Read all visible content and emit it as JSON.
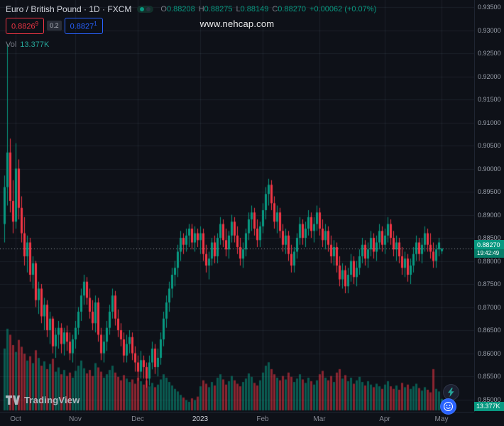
{
  "header": {
    "symbol_full": "Euro / British Pound · 1D · FXCM",
    "ohlc": {
      "o_label": "O",
      "o": "0.88208",
      "h_label": "H",
      "h": "0.88275",
      "l_label": "L",
      "l": "0.88149",
      "c_label": "C",
      "c": "0.88270",
      "change": "+0.00062",
      "change_pct": "(+0.07%)"
    },
    "sell_price": "0.8826",
    "sell_sup": "9",
    "spread": "0.2",
    "buy_price": "0.8827",
    "buy_sup": "1",
    "vol_label": "Vol",
    "vol_value": "13.377K"
  },
  "watermark": "www.nehcap.com",
  "price_axis": {
    "current": {
      "price": "0.88270",
      "countdown": "19:42:49"
    },
    "volume_badge": "13.377K"
  },
  "logo": {
    "text": "TradingView"
  },
  "colors": {
    "background": "#0e1118",
    "grid": "rgba(151,166,195,0.10)",
    "up": "#089981",
    "down": "#f23645",
    "vol_up": "rgba(8,153,129,0.55)",
    "vol_down": "rgba(242,54,69,0.55)",
    "current_line": "#9598a1",
    "axis_text": "#9aa0ab",
    "badge": "#089981",
    "sell": "#f23645",
    "buy": "#2962ff"
  },
  "chart_data": {
    "type": "candlestick",
    "title": "Euro / British Pound 1D FXCM",
    "ylabel": "Price (EURGBP)",
    "y_range": [
      0.85,
      0.935
    ],
    "grid": true,
    "price_ticks": [
      0.935,
      0.93,
      0.925,
      0.92,
      0.915,
      0.91,
      0.905,
      0.9,
      0.895,
      0.89,
      0.885,
      0.88,
      0.875,
      0.87,
      0.865,
      0.86,
      0.855,
      0.85
    ],
    "x_ticks": [
      {
        "label": "Oct",
        "i": 4
      },
      {
        "label": "Nov",
        "i": 25
      },
      {
        "label": "Dec",
        "i": 47
      },
      {
        "label": "2023",
        "i": 69,
        "year": true
      },
      {
        "label": "Feb",
        "i": 91
      },
      {
        "label": "Mar",
        "i": 111
      },
      {
        "label": "Apr",
        "i": 134
      },
      {
        "label": "May",
        "i": 154
      }
    ],
    "current_price": 0.8827,
    "volume_max_k": 95,
    "ohlc": [
      [
        0.888,
        0.8985,
        0.884,
        0.896
      ],
      [
        0.896,
        0.927,
        0.892,
        0.9035
      ],
      [
        0.9035,
        0.9065,
        0.8905,
        0.893
      ],
      [
        0.893,
        0.8975,
        0.886,
        0.8885
      ],
      [
        0.8885,
        0.9055,
        0.887,
        0.9
      ],
      [
        0.9,
        0.902,
        0.889,
        0.8915
      ],
      [
        0.8915,
        0.894,
        0.884,
        0.886
      ],
      [
        0.886,
        0.8895,
        0.879,
        0.881
      ],
      [
        0.881,
        0.8855,
        0.8775,
        0.884
      ],
      [
        0.884,
        0.885,
        0.8755,
        0.877
      ],
      [
        0.877,
        0.881,
        0.874,
        0.8795
      ],
      [
        0.8795,
        0.88,
        0.87,
        0.8715
      ],
      [
        0.8715,
        0.8755,
        0.8685,
        0.874
      ],
      [
        0.874,
        0.875,
        0.8665,
        0.868
      ],
      [
        0.868,
        0.872,
        0.865,
        0.8705
      ],
      [
        0.8705,
        0.8715,
        0.8635,
        0.865
      ],
      [
        0.865,
        0.869,
        0.862,
        0.8675
      ],
      [
        0.8675,
        0.868,
        0.86,
        0.8615
      ],
      [
        0.8615,
        0.8655,
        0.859,
        0.864
      ],
      [
        0.864,
        0.867,
        0.861,
        0.8655
      ],
      [
        0.8655,
        0.8665,
        0.86,
        0.862
      ],
      [
        0.862,
        0.8655,
        0.8595,
        0.8645
      ],
      [
        0.8645,
        0.866,
        0.8605,
        0.8625
      ],
      [
        0.8625,
        0.8645,
        0.8585,
        0.86
      ],
      [
        0.86,
        0.864,
        0.858,
        0.863
      ],
      [
        0.863,
        0.867,
        0.861,
        0.8655
      ],
      [
        0.8655,
        0.87,
        0.864,
        0.869
      ],
      [
        0.869,
        0.874,
        0.867,
        0.8725
      ],
      [
        0.8725,
        0.877,
        0.8705,
        0.8755
      ],
      [
        0.8755,
        0.8765,
        0.8705,
        0.872
      ],
      [
        0.872,
        0.874,
        0.8675,
        0.869
      ],
      [
        0.869,
        0.8715,
        0.865,
        0.8665
      ],
      [
        0.8665,
        0.8725,
        0.8645,
        0.871
      ],
      [
        0.871,
        0.872,
        0.8625,
        0.864
      ],
      [
        0.864,
        0.8655,
        0.8585,
        0.86
      ],
      [
        0.86,
        0.864,
        0.858,
        0.8625
      ],
      [
        0.8625,
        0.867,
        0.8605,
        0.8655
      ],
      [
        0.8655,
        0.8705,
        0.864,
        0.869
      ],
      [
        0.869,
        0.874,
        0.8675,
        0.8725
      ],
      [
        0.8725,
        0.8735,
        0.866,
        0.8675
      ],
      [
        0.8675,
        0.8695,
        0.8635,
        0.865
      ],
      [
        0.865,
        0.8665,
        0.8615,
        0.863
      ],
      [
        0.863,
        0.8645,
        0.858,
        0.8595
      ],
      [
        0.8595,
        0.864,
        0.858,
        0.862
      ],
      [
        0.862,
        0.865,
        0.86,
        0.8635
      ],
      [
        0.8635,
        0.8645,
        0.8585,
        0.86
      ],
      [
        0.86,
        0.8615,
        0.856,
        0.858
      ],
      [
        0.858,
        0.8595,
        0.854,
        0.856
      ],
      [
        0.856,
        0.8605,
        0.8545,
        0.8585
      ],
      [
        0.8585,
        0.8595,
        0.8545,
        0.857
      ],
      [
        0.857,
        0.858,
        0.8525,
        0.8545
      ],
      [
        0.8545,
        0.8595,
        0.853,
        0.858
      ],
      [
        0.858,
        0.8625,
        0.8565,
        0.861
      ],
      [
        0.861,
        0.862,
        0.8555,
        0.857
      ],
      [
        0.857,
        0.861,
        0.855,
        0.859
      ],
      [
        0.859,
        0.8645,
        0.8575,
        0.863
      ],
      [
        0.863,
        0.869,
        0.8615,
        0.8675
      ],
      [
        0.8675,
        0.8725,
        0.8655,
        0.871
      ],
      [
        0.871,
        0.8755,
        0.869,
        0.874
      ],
      [
        0.874,
        0.8785,
        0.872,
        0.877
      ],
      [
        0.877,
        0.88,
        0.8745,
        0.8785
      ],
      [
        0.8785,
        0.8835,
        0.8765,
        0.882
      ],
      [
        0.882,
        0.8865,
        0.88,
        0.885
      ],
      [
        0.885,
        0.886,
        0.8815,
        0.8835
      ],
      [
        0.8835,
        0.887,
        0.882,
        0.8855
      ],
      [
        0.8855,
        0.888,
        0.883,
        0.887
      ],
      [
        0.887,
        0.888,
        0.8825,
        0.884
      ],
      [
        0.884,
        0.8875,
        0.882,
        0.886
      ],
      [
        0.886,
        0.887,
        0.883,
        0.8845
      ],
      [
        0.8845,
        0.8875,
        0.8815,
        0.886
      ],
      [
        0.886,
        0.887,
        0.88,
        0.8815
      ],
      [
        0.8815,
        0.8835,
        0.8775,
        0.879
      ],
      [
        0.879,
        0.882,
        0.876,
        0.8805
      ],
      [
        0.8805,
        0.885,
        0.879,
        0.884
      ],
      [
        0.884,
        0.8855,
        0.8795,
        0.881
      ],
      [
        0.881,
        0.886,
        0.8795,
        0.885
      ],
      [
        0.885,
        0.8895,
        0.8835,
        0.888
      ],
      [
        0.888,
        0.889,
        0.883,
        0.8845
      ],
      [
        0.8845,
        0.887,
        0.881,
        0.8825
      ],
      [
        0.8825,
        0.8865,
        0.8805,
        0.8855
      ],
      [
        0.8855,
        0.89,
        0.884,
        0.8885
      ],
      [
        0.8885,
        0.8895,
        0.884,
        0.8855
      ],
      [
        0.8855,
        0.8875,
        0.8815,
        0.883
      ],
      [
        0.883,
        0.885,
        0.879,
        0.8805
      ],
      [
        0.8805,
        0.884,
        0.8785,
        0.8825
      ],
      [
        0.8825,
        0.887,
        0.881,
        0.886
      ],
      [
        0.886,
        0.8905,
        0.8845,
        0.889
      ],
      [
        0.889,
        0.892,
        0.8865,
        0.8905
      ],
      [
        0.8905,
        0.8915,
        0.8855,
        0.887
      ],
      [
        0.887,
        0.889,
        0.883,
        0.8845
      ],
      [
        0.8845,
        0.8885,
        0.883,
        0.8875
      ],
      [
        0.8875,
        0.8925,
        0.886,
        0.891
      ],
      [
        0.891,
        0.896,
        0.889,
        0.8945
      ],
      [
        0.8945,
        0.8978,
        0.892,
        0.8965
      ],
      [
        0.8965,
        0.8975,
        0.891,
        0.8925
      ],
      [
        0.8925,
        0.894,
        0.887,
        0.8885
      ],
      [
        0.8885,
        0.892,
        0.886,
        0.8905
      ],
      [
        0.8905,
        0.8915,
        0.885,
        0.8865
      ],
      [
        0.8865,
        0.888,
        0.882,
        0.8835
      ],
      [
        0.8835,
        0.887,
        0.8815,
        0.8855
      ],
      [
        0.8855,
        0.8865,
        0.88,
        0.8815
      ],
      [
        0.8815,
        0.8835,
        0.8775,
        0.879
      ],
      [
        0.879,
        0.883,
        0.8775,
        0.882
      ],
      [
        0.882,
        0.886,
        0.8805,
        0.885
      ],
      [
        0.885,
        0.8895,
        0.8835,
        0.888
      ],
      [
        0.888,
        0.889,
        0.8835,
        0.885
      ],
      [
        0.885,
        0.8885,
        0.883,
        0.887
      ],
      [
        0.887,
        0.891,
        0.8855,
        0.8895
      ],
      [
        0.8895,
        0.8905,
        0.885,
        0.8865
      ],
      [
        0.8865,
        0.8895,
        0.884,
        0.888
      ],
      [
        0.888,
        0.892,
        0.8865,
        0.8905
      ],
      [
        0.8905,
        0.8915,
        0.8855,
        0.887
      ],
      [
        0.887,
        0.889,
        0.883,
        0.8845
      ],
      [
        0.8845,
        0.888,
        0.8825,
        0.8865
      ],
      [
        0.8865,
        0.8875,
        0.882,
        0.8835
      ],
      [
        0.8835,
        0.8855,
        0.8795,
        0.881
      ],
      [
        0.881,
        0.8845,
        0.879,
        0.883
      ],
      [
        0.883,
        0.884,
        0.8775,
        0.879
      ],
      [
        0.879,
        0.881,
        0.8745,
        0.876
      ],
      [
        0.876,
        0.8795,
        0.874,
        0.878
      ],
      [
        0.878,
        0.879,
        0.873,
        0.8745
      ],
      [
        0.8745,
        0.8785,
        0.873,
        0.877
      ],
      [
        0.877,
        0.8815,
        0.8755,
        0.88
      ],
      [
        0.88,
        0.881,
        0.875,
        0.8765
      ],
      [
        0.8765,
        0.88,
        0.8745,
        0.8785
      ],
      [
        0.8785,
        0.8825,
        0.877,
        0.881
      ],
      [
        0.881,
        0.885,
        0.8795,
        0.8835
      ],
      [
        0.8835,
        0.8845,
        0.879,
        0.8805
      ],
      [
        0.8805,
        0.884,
        0.8785,
        0.8825
      ],
      [
        0.8825,
        0.8865,
        0.881,
        0.885
      ],
      [
        0.885,
        0.886,
        0.8805,
        0.882
      ],
      [
        0.882,
        0.8855,
        0.88,
        0.884
      ],
      [
        0.884,
        0.888,
        0.8825,
        0.8865
      ],
      [
        0.8865,
        0.8875,
        0.882,
        0.8835
      ],
      [
        0.8835,
        0.887,
        0.8815,
        0.8855
      ],
      [
        0.8855,
        0.8895,
        0.884,
        0.888
      ],
      [
        0.888,
        0.889,
        0.8835,
        0.885
      ],
      [
        0.885,
        0.8865,
        0.881,
        0.8825
      ],
      [
        0.8825,
        0.8855,
        0.88,
        0.884
      ],
      [
        0.884,
        0.885,
        0.8795,
        0.881
      ],
      [
        0.881,
        0.883,
        0.877,
        0.8785
      ],
      [
        0.8785,
        0.882,
        0.8765,
        0.8805
      ],
      [
        0.8805,
        0.8815,
        0.8755,
        0.877
      ],
      [
        0.877,
        0.8805,
        0.875,
        0.879
      ],
      [
        0.879,
        0.883,
        0.8775,
        0.8815
      ],
      [
        0.8815,
        0.8855,
        0.88,
        0.884
      ],
      [
        0.884,
        0.885,
        0.88,
        0.8815
      ],
      [
        0.8815,
        0.885,
        0.8795,
        0.8835
      ],
      [
        0.8835,
        0.8875,
        0.882,
        0.886
      ],
      [
        0.886,
        0.887,
        0.882,
        0.8835
      ],
      [
        0.8835,
        0.886,
        0.8805,
        0.882
      ],
      [
        0.882,
        0.884,
        0.8785,
        0.88
      ],
      [
        0.88,
        0.8835,
        0.8785,
        0.8825
      ],
      [
        0.8825,
        0.885,
        0.881,
        0.884
      ],
      [
        0.88208,
        0.88275,
        0.88149,
        0.8827
      ]
    ],
    "volume_k": [
      72,
      95,
      88,
      76,
      68,
      82,
      74,
      66,
      58,
      63,
      55,
      70,
      61,
      52,
      57,
      48,
      54,
      60,
      45,
      50,
      42,
      47,
      40,
      44,
      38,
      46,
      52,
      58,
      49,
      43,
      47,
      40,
      55,
      50,
      45,
      38,
      42,
      47,
      52,
      44,
      39,
      35,
      41,
      37,
      33,
      36,
      31,
      38,
      34,
      30,
      35,
      28,
      32,
      27,
      30,
      36,
      42,
      38,
      33,
      29,
      25,
      22,
      18,
      15,
      12,
      10,
      14,
      12,
      16,
      28,
      35,
      31,
      27,
      33,
      29,
      38,
      42,
      36,
      30,
      34,
      40,
      35,
      31,
      28,
      33,
      37,
      43,
      39,
      32,
      29,
      35,
      44,
      52,
      56,
      48,
      42,
      38,
      35,
      40,
      36,
      44,
      39,
      33,
      37,
      42,
      36,
      32,
      38,
      34,
      30,
      35,
      42,
      46,
      38,
      35,
      40,
      33,
      44,
      48,
      37,
      41,
      34,
      38,
      31,
      35,
      39,
      33,
      29,
      34,
      30,
      27,
      31,
      28,
      25,
      30,
      34,
      28,
      25,
      29,
      24,
      32,
      27,
      30,
      25,
      28,
      31,
      26,
      23,
      27,
      24,
      21,
      48,
      25,
      22,
      13.377
    ]
  }
}
